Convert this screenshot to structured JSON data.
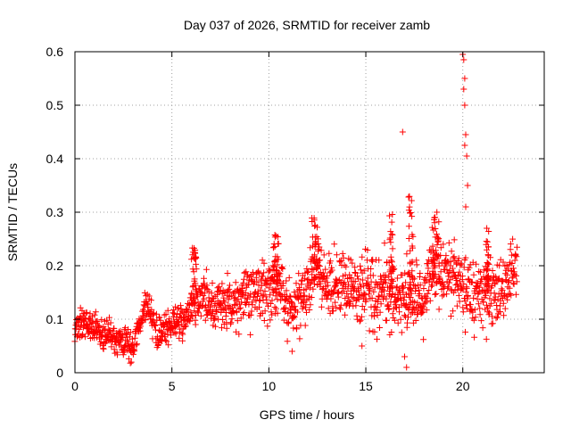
{
  "chart_data": {
    "type": "scatter",
    "title": "Day 037 of 2026, SRMTID for receiver zamb",
    "xlabel": "GPS time / hours",
    "ylabel": "SRMTID / TECUs",
    "xlim": [
      0,
      24.2
    ],
    "ylim": [
      0,
      0.6
    ],
    "xticks": [
      0,
      5,
      10,
      15,
      20
    ],
    "xtick_labels": [
      "0",
      "5",
      "10",
      "15",
      "20"
    ],
    "yticks": [
      0,
      0.1,
      0.2,
      0.3,
      0.4,
      0.5,
      0.6
    ],
    "ytick_labels": [
      "0",
      "0.1",
      "0.2",
      "0.3",
      "0.4",
      "0.5",
      "0.6"
    ],
    "grid": true,
    "marker": "plus",
    "color": "#ff0000",
    "series": [
      {
        "name": "SRMTID",
        "trend": [
          [
            0.0,
            0.085
          ],
          [
            0.5,
            0.095
          ],
          [
            1.0,
            0.08
          ],
          [
            1.5,
            0.075
          ],
          [
            2.0,
            0.065
          ],
          [
            2.5,
            0.055
          ],
          [
            3.0,
            0.05
          ],
          [
            3.3,
            0.09
          ],
          [
            3.7,
            0.13
          ],
          [
            4.0,
            0.11
          ],
          [
            4.3,
            0.07
          ],
          [
            4.8,
            0.085
          ],
          [
            5.5,
            0.1
          ],
          [
            6.0,
            0.12
          ],
          [
            6.5,
            0.15
          ],
          [
            7.0,
            0.13
          ],
          [
            8.0,
            0.13
          ],
          [
            9.0,
            0.15
          ],
          [
            10.0,
            0.15
          ],
          [
            10.5,
            0.17
          ],
          [
            11.0,
            0.12
          ],
          [
            12.0,
            0.15
          ],
          [
            12.3,
            0.2
          ],
          [
            13.0,
            0.16
          ],
          [
            14.0,
            0.16
          ],
          [
            15.0,
            0.15
          ],
          [
            16.0,
            0.15
          ],
          [
            17.0,
            0.14
          ],
          [
            17.5,
            0.15
          ],
          [
            18.0,
            0.13
          ],
          [
            18.5,
            0.22
          ],
          [
            19.0,
            0.18
          ],
          [
            20.0,
            0.16
          ],
          [
            20.5,
            0.15
          ],
          [
            21.0,
            0.14
          ],
          [
            22.0,
            0.16
          ],
          [
            22.8,
            0.2
          ]
        ],
        "spread": [
          [
            0.0,
            0.025
          ],
          [
            3.0,
            0.025
          ],
          [
            5.0,
            0.03
          ],
          [
            10.0,
            0.05
          ],
          [
            15.0,
            0.06
          ],
          [
            20.0,
            0.06
          ],
          [
            22.8,
            0.05
          ]
        ],
        "x_range": [
          0.0,
          22.8
        ],
        "n_points": 1600,
        "bursts": [
          {
            "x_range": [
              12.2,
              12.6
            ],
            "y_range": [
              0.15,
              0.29
            ]
          },
          {
            "x_range": [
              16.2,
              16.4
            ],
            "y_range": [
              0.14,
              0.3
            ]
          },
          {
            "x_range": [
              17.2,
              17.45
            ],
            "y_range": [
              0.13,
              0.33
            ]
          },
          {
            "x_range": [
              18.4,
              18.8
            ],
            "y_range": [
              0.18,
              0.3
            ]
          },
          {
            "x_range": [
              21.2,
              21.35
            ],
            "y_range": [
              0.15,
              0.29
            ]
          },
          {
            "x_range": [
              10.2,
              10.5
            ],
            "y_range": [
              0.15,
              0.26
            ]
          },
          {
            "x_range": [
              6.0,
              6.3
            ],
            "y_range": [
              0.13,
              0.235
            ]
          }
        ],
        "outliers": [
          {
            "x": 16.9,
            "y": 0.45
          },
          {
            "x": 17.0,
            "y": 0.03
          },
          {
            "x": 17.1,
            "y": 0.01
          },
          {
            "x": 20.0,
            "y": 0.595
          },
          {
            "x": 20.05,
            "y": 0.585
          },
          {
            "x": 20.1,
            "y": 0.55
          },
          {
            "x": 20.05,
            "y": 0.53
          },
          {
            "x": 20.1,
            "y": 0.5
          },
          {
            "x": 20.1,
            "y": 0.425
          },
          {
            "x": 20.15,
            "y": 0.445
          },
          {
            "x": 20.2,
            "y": 0.405
          },
          {
            "x": 20.25,
            "y": 0.35
          },
          {
            "x": 20.15,
            "y": 0.31
          },
          {
            "x": 11.2,
            "y": 0.04
          },
          {
            "x": 14.8,
            "y": 0.05
          }
        ]
      }
    ]
  }
}
